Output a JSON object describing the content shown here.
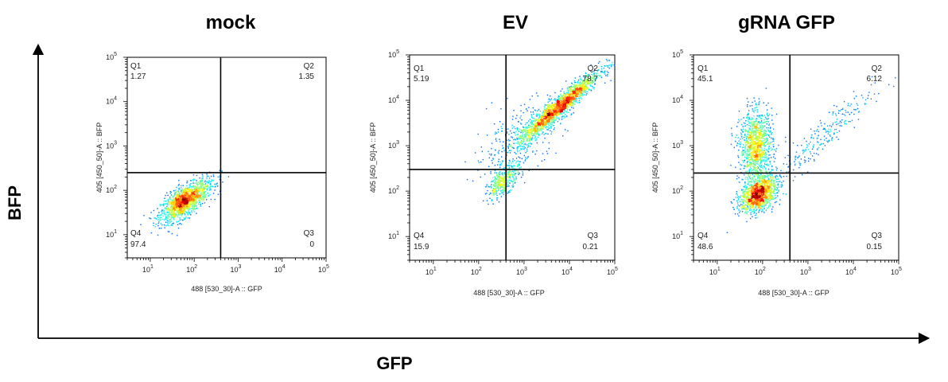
{
  "figure": {
    "y_axis_label": "BFP",
    "x_axis_label": "GFP"
  },
  "chart_data": [
    {
      "type": "scatter",
      "title": "mock",
      "xlabel": "488 [530_30]-A :: GFP",
      "ylabel": "405 [450_50]-A :: BFP",
      "x_scale": "log",
      "y_scale": "log",
      "xlim": [
        3,
        100000
      ],
      "ylim": [
        3,
        100000
      ],
      "x_ticks": [
        10,
        100,
        1000,
        10000,
        100000
      ],
      "y_ticks": [
        10,
        100,
        1000,
        10000,
        100000
      ],
      "gate": {
        "x": 400,
        "y": 250
      },
      "quadrants": [
        {
          "name": "Q1",
          "value": "1.27"
        },
        {
          "name": "Q2",
          "value": "1.35"
        },
        {
          "name": "Q3",
          "value": "0"
        },
        {
          "name": "Q4",
          "value": "97.4"
        }
      ],
      "populations": [
        {
          "cx_log": 1.75,
          "cy_log": 1.75,
          "sx": 0.26,
          "sy": 0.22,
          "rho": 0.65,
          "n": 1400
        },
        {
          "cx_log": 2.2,
          "cy_log": 2.05,
          "sx": 0.2,
          "sy": 0.18,
          "rho": 0.6,
          "n": 120
        }
      ]
    },
    {
      "type": "scatter",
      "title": "EV",
      "xlabel": "488 [530_30]-A :: GFP",
      "ylabel": "405 [450_50]-A :: BFP",
      "x_scale": "log",
      "y_scale": "log",
      "xlim": [
        3,
        100000
      ],
      "ylim": [
        3,
        100000
      ],
      "x_ticks": [
        10,
        100,
        1000,
        10000,
        100000
      ],
      "y_ticks": [
        10,
        100,
        1000,
        10000,
        100000
      ],
      "gate": {
        "x": 400,
        "y": 300
      },
      "quadrants": [
        {
          "name": "Q1",
          "value": "5.19"
        },
        {
          "name": "Q2",
          "value": "78.7"
        },
        {
          "name": "Q3",
          "value": "0.21"
        },
        {
          "name": "Q4",
          "value": "15.9"
        }
      ],
      "populations": [
        {
          "cx_log": 3.75,
          "cy_log": 3.85,
          "sx": 0.45,
          "sy": 0.4,
          "rho": 0.95,
          "n": 1900
        },
        {
          "cx_log": 2.55,
          "cy_log": 2.25,
          "sx": 0.18,
          "sy": 0.2,
          "rho": 0.7,
          "n": 420
        },
        {
          "cx_log": 2.9,
          "cy_log": 3.2,
          "sx": 0.5,
          "sy": 0.45,
          "rho": 0.6,
          "n": 320
        }
      ]
    },
    {
      "type": "scatter",
      "title": "gRNA GFP",
      "xlabel": "488 [530_30]-A :: GFP",
      "ylabel": "405 [450_50]-A :: BFP",
      "x_scale": "log",
      "y_scale": "log",
      "xlim": [
        3,
        100000
      ],
      "ylim": [
        3,
        100000
      ],
      "x_ticks": [
        10,
        100,
        1000,
        10000,
        100000
      ],
      "y_ticks": [
        10,
        100,
        1000,
        10000,
        100000
      ],
      "gate": {
        "x": 400,
        "y": 250
      },
      "quadrants": [
        {
          "name": "Q1",
          "value": "45.1"
        },
        {
          "name": "Q2",
          "value": "6.12"
        },
        {
          "name": "Q3",
          "value": "0.15"
        },
        {
          "name": "Q4",
          "value": "48.6"
        }
      ],
      "populations": [
        {
          "cx_log": 1.85,
          "cy_log": 3.0,
          "sx": 0.18,
          "sy": 0.38,
          "rho": 0.05,
          "n": 1200
        },
        {
          "cx_log": 1.9,
          "cy_log": 1.95,
          "sx": 0.2,
          "sy": 0.2,
          "rho": 0.4,
          "n": 1300
        },
        {
          "cx_log": 3.2,
          "cy_log": 3.1,
          "sx": 0.6,
          "sy": 0.55,
          "rho": 0.93,
          "n": 260
        }
      ]
    }
  ]
}
